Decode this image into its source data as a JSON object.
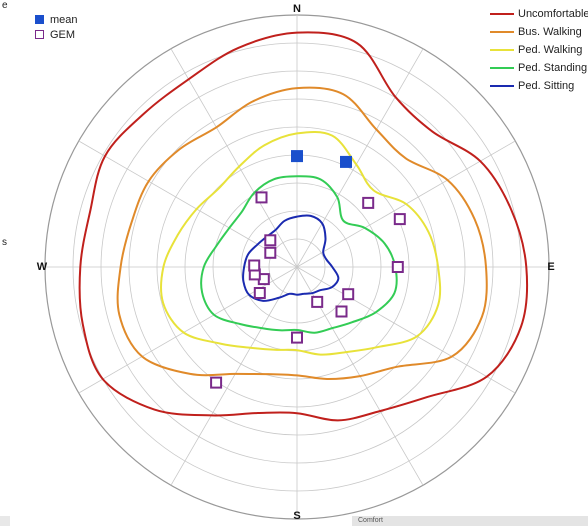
{
  "chart_data": {
    "type": "polar-contour",
    "compass": {
      "north": "N",
      "east": "E",
      "south": "S",
      "west": "W"
    },
    "rings": 9,
    "radial_spokes_deg": [
      0,
      30,
      60,
      90,
      120,
      150,
      180,
      210,
      240,
      270,
      300,
      330
    ],
    "series": [
      {
        "name": "Uncomfortable",
        "color": "#c0201c",
        "radius_by_bearing": [
          [
            0,
            0.93
          ],
          [
            15,
            0.92
          ],
          [
            30,
            0.78
          ],
          [
            45,
            0.76
          ],
          [
            60,
            0.84
          ],
          [
            75,
            0.88
          ],
          [
            90,
            0.91
          ],
          [
            105,
            0.92
          ],
          [
            120,
            0.87
          ],
          [
            135,
            0.73
          ],
          [
            150,
            0.66
          ],
          [
            165,
            0.63
          ],
          [
            180,
            0.58
          ],
          [
            195,
            0.6
          ],
          [
            210,
            0.68
          ],
          [
            225,
            0.8
          ],
          [
            240,
            0.89
          ],
          [
            255,
            0.88
          ],
          [
            270,
            0.86
          ],
          [
            285,
            0.85
          ],
          [
            300,
            0.88
          ],
          [
            315,
            0.86
          ],
          [
            330,
            0.86
          ],
          [
            345,
            0.9
          ]
        ]
      },
      {
        "name": "Bus. Walking",
        "color": "#e08a2a",
        "radius_by_bearing": [
          [
            0,
            0.71
          ],
          [
            15,
            0.71
          ],
          [
            30,
            0.63
          ],
          [
            45,
            0.61
          ],
          [
            60,
            0.69
          ],
          [
            75,
            0.73
          ],
          [
            90,
            0.75
          ],
          [
            105,
            0.76
          ],
          [
            120,
            0.71
          ],
          [
            135,
            0.56
          ],
          [
            150,
            0.5
          ],
          [
            165,
            0.46
          ],
          [
            180,
            0.43
          ],
          [
            195,
            0.44
          ],
          [
            210,
            0.49
          ],
          [
            225,
            0.6
          ],
          [
            240,
            0.71
          ],
          [
            255,
            0.73
          ],
          [
            270,
            0.7
          ],
          [
            285,
            0.68
          ],
          [
            300,
            0.68
          ],
          [
            315,
            0.66
          ],
          [
            330,
            0.64
          ],
          [
            345,
            0.68
          ]
        ]
      },
      {
        "name": "Ped. Walking",
        "color": "#e8e23a",
        "radius_by_bearing": [
          [
            0,
            0.53
          ],
          [
            15,
            0.54
          ],
          [
            30,
            0.47
          ],
          [
            45,
            0.43
          ],
          [
            60,
            0.5
          ],
          [
            75,
            0.54
          ],
          [
            90,
            0.56
          ],
          [
            105,
            0.58
          ],
          [
            120,
            0.55
          ],
          [
            135,
            0.45
          ],
          [
            150,
            0.39
          ],
          [
            165,
            0.36
          ],
          [
            180,
            0.33
          ],
          [
            195,
            0.34
          ],
          [
            210,
            0.37
          ],
          [
            225,
            0.43
          ],
          [
            240,
            0.52
          ],
          [
            255,
            0.55
          ],
          [
            270,
            0.53
          ],
          [
            285,
            0.49
          ],
          [
            300,
            0.46
          ],
          [
            315,
            0.44
          ],
          [
            330,
            0.46
          ],
          [
            345,
            0.5
          ]
        ]
      },
      {
        "name": "Ped. Standing",
        "color": "#33cc55",
        "radius_by_bearing": [
          [
            0,
            0.36
          ],
          [
            15,
            0.36
          ],
          [
            30,
            0.32
          ],
          [
            45,
            0.26
          ],
          [
            60,
            0.31
          ],
          [
            75,
            0.36
          ],
          [
            90,
            0.39
          ],
          [
            105,
            0.4
          ],
          [
            120,
            0.36
          ],
          [
            135,
            0.31
          ],
          [
            150,
            0.28
          ],
          [
            165,
            0.27
          ],
          [
            180,
            0.25
          ],
          [
            195,
            0.26
          ],
          [
            210,
            0.28
          ],
          [
            225,
            0.32
          ],
          [
            240,
            0.38
          ],
          [
            255,
            0.39
          ],
          [
            270,
            0.37
          ],
          [
            285,
            0.33
          ],
          [
            300,
            0.31
          ],
          [
            315,
            0.31
          ],
          [
            330,
            0.34
          ],
          [
            345,
            0.36
          ]
        ]
      },
      {
        "name": "Ped. Sitting",
        "color": "#1a2ab0",
        "radius_by_bearing": [
          [
            0,
            0.2
          ],
          [
            15,
            0.21
          ],
          [
            30,
            0.2
          ],
          [
            45,
            0.16
          ],
          [
            60,
            0.12
          ],
          [
            75,
            0.12
          ],
          [
            90,
            0.14
          ],
          [
            105,
            0.17
          ],
          [
            120,
            0.16
          ],
          [
            135,
            0.13
          ],
          [
            150,
            0.12
          ],
          [
            165,
            0.11
          ],
          [
            180,
            0.11
          ],
          [
            195,
            0.11
          ],
          [
            210,
            0.14
          ],
          [
            225,
            0.19
          ],
          [
            240,
            0.22
          ],
          [
            255,
            0.22
          ],
          [
            270,
            0.21
          ],
          [
            285,
            0.2
          ],
          [
            300,
            0.18
          ],
          [
            315,
            0.17
          ],
          [
            330,
            0.17
          ],
          [
            345,
            0.19
          ]
        ]
      }
    ],
    "points": [
      {
        "name": "mean",
        "marker": "filled-square",
        "color": "#1a4fcc",
        "positions_bearing_radius": [
          [
            0,
            0.44
          ],
          [
            25,
            0.46
          ]
        ]
      },
      {
        "name": "GEM",
        "marker": "open-square",
        "color": "#7a2a8a",
        "positions_bearing_radius": [
          [
            333,
            0.31
          ],
          [
            48,
            0.38
          ],
          [
            65,
            0.45
          ],
          [
            90,
            0.4
          ],
          [
            118,
            0.23
          ],
          [
            135,
            0.25
          ],
          [
            150,
            0.16
          ],
          [
            180,
            0.28
          ],
          [
            215,
            0.56
          ],
          [
            235,
            0.18
          ],
          [
            250,
            0.14
          ],
          [
            260,
            0.17
          ],
          [
            272,
            0.17
          ],
          [
            298,
            0.12
          ],
          [
            315,
            0.15
          ]
        ]
      }
    ],
    "legend": {
      "left": [
        "mean",
        "GEM"
      ],
      "right": [
        "Uncomfortable",
        "Bus. Walking",
        "Ped. Walking",
        "Ped. Standing",
        "Ped. Sitting"
      ]
    }
  },
  "edge_texts": {
    "top_left": "e",
    "mid_left": "s"
  },
  "bottom_strip": {
    "label": "Comfort"
  }
}
